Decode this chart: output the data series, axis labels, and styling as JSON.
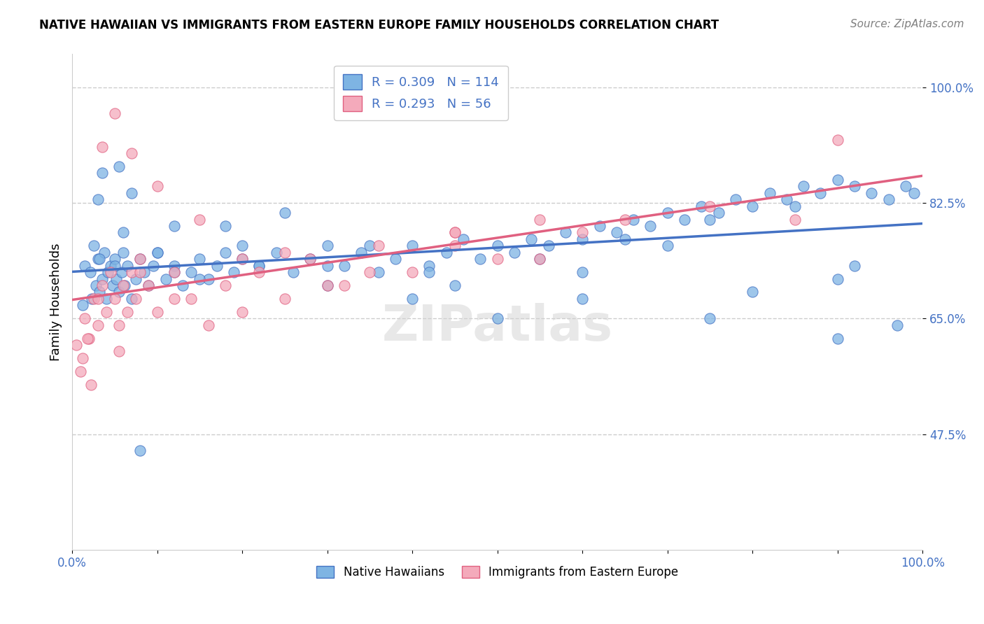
{
  "title": "NATIVE HAWAIIAN VS IMMIGRANTS FROM EASTERN EUROPE FAMILY HOUSEHOLDS CORRELATION CHART",
  "source": "Source: ZipAtlas.com",
  "xlabel": "",
  "ylabel": "Family Households",
  "xlim": [
    0.0,
    100.0
  ],
  "ylim": [
    30.0,
    105.0
  ],
  "ytick_labels": [
    "47.5%",
    "65.0%",
    "82.5%",
    "100.0%"
  ],
  "ytick_values": [
    47.5,
    65.0,
    82.5,
    100.0
  ],
  "xtick_labels": [
    "0.0%",
    "",
    "",
    "",
    "",
    "",
    "",
    "",
    "",
    "",
    "100.0%"
  ],
  "xtick_values": [
    0,
    10,
    20,
    30,
    40,
    50,
    60,
    70,
    80,
    90,
    100
  ],
  "series1_name": "Native Hawaiians",
  "series1_color": "#7EB4E3",
  "series1_line_color": "#4472C4",
  "series1_R": 0.309,
  "series1_N": 114,
  "series2_name": "Immigrants from Eastern Europe",
  "series2_color": "#F4AABB",
  "series2_line_color": "#E06080",
  "series2_R": 0.293,
  "series2_N": 56,
  "background_color": "#FFFFFF",
  "grid_color": "#CCCCCC",
  "legend_text_color": "#4472C4",
  "watermark": "ZIPatlas",
  "blue_points_x": [
    1.2,
    1.5,
    2.1,
    2.3,
    2.5,
    2.8,
    3.0,
    3.2,
    3.5,
    3.8,
    4.0,
    4.2,
    4.5,
    4.8,
    5.0,
    5.2,
    5.5,
    5.8,
    6.0,
    6.2,
    6.5,
    7.0,
    7.5,
    8.0,
    8.5,
    9.0,
    9.5,
    10.0,
    11.0,
    12.0,
    13.0,
    14.0,
    15.0,
    16.0,
    17.0,
    18.0,
    19.0,
    20.0,
    22.0,
    24.0,
    26.0,
    28.0,
    30.0,
    32.0,
    34.0,
    36.0,
    38.0,
    40.0,
    42.0,
    44.0,
    46.0,
    48.0,
    50.0,
    52.0,
    54.0,
    56.0,
    58.0,
    60.0,
    62.0,
    64.0,
    66.0,
    68.0,
    70.0,
    72.0,
    74.0,
    76.0,
    78.0,
    80.0,
    82.0,
    84.0,
    86.0,
    88.0,
    90.0,
    92.0,
    94.0,
    96.0,
    98.0,
    99.0,
    3.0,
    5.5,
    8.0,
    12.0,
    18.0,
    25.0,
    35.0,
    42.0,
    55.0,
    65.0,
    75.0,
    85.0,
    92.0,
    97.0,
    3.5,
    6.0,
    10.0,
    15.0,
    22.0,
    30.0,
    40.0,
    50.0,
    60.0,
    70.0,
    80.0,
    90.0,
    3.2,
    5.0,
    7.0,
    12.0,
    20.0,
    30.0,
    45.0,
    60.0,
    75.0,
    90.0
  ],
  "blue_points_y": [
    67.0,
    73.0,
    72.0,
    68.0,
    76.0,
    70.0,
    74.0,
    69.0,
    71.0,
    75.0,
    68.0,
    72.0,
    73.0,
    70.0,
    74.0,
    71.0,
    69.0,
    72.0,
    75.0,
    70.0,
    73.0,
    68.0,
    71.0,
    74.0,
    72.0,
    70.0,
    73.0,
    75.0,
    71.0,
    73.0,
    70.0,
    72.0,
    74.0,
    71.0,
    73.0,
    75.0,
    72.0,
    74.0,
    73.0,
    75.0,
    72.0,
    74.0,
    76.0,
    73.0,
    75.0,
    72.0,
    74.0,
    76.0,
    73.0,
    75.0,
    77.0,
    74.0,
    76.0,
    75.0,
    77.0,
    76.0,
    78.0,
    77.0,
    79.0,
    78.0,
    80.0,
    79.0,
    81.0,
    80.0,
    82.0,
    81.0,
    83.0,
    82.0,
    84.0,
    83.0,
    85.0,
    84.0,
    86.0,
    85.0,
    84.0,
    83.0,
    85.0,
    84.0,
    83.0,
    88.0,
    45.0,
    72.0,
    79.0,
    81.0,
    76.0,
    72.0,
    74.0,
    77.0,
    80.0,
    82.0,
    73.0,
    64.0,
    87.0,
    78.0,
    75.0,
    71.0,
    73.0,
    70.0,
    68.0,
    65.0,
    72.0,
    76.0,
    69.0,
    71.0,
    74.0,
    73.0,
    84.0,
    79.0,
    76.0,
    73.0,
    70.0,
    68.0,
    65.0,
    62.0
  ],
  "pink_points_x": [
    0.5,
    1.0,
    1.5,
    2.0,
    2.5,
    3.0,
    3.5,
    4.0,
    4.5,
    5.0,
    5.5,
    6.0,
    6.5,
    7.0,
    7.5,
    8.0,
    9.0,
    10.0,
    12.0,
    14.0,
    16.0,
    18.0,
    20.0,
    22.0,
    25.0,
    28.0,
    32.0,
    36.0,
    40.0,
    45.0,
    50.0,
    55.0,
    1.2,
    2.2,
    3.5,
    5.0,
    7.0,
    10.0,
    15.0,
    25.0,
    35.0,
    45.0,
    55.0,
    65.0,
    1.8,
    3.0,
    5.5,
    8.0,
    12.0,
    20.0,
    30.0,
    45.0,
    60.0,
    75.0,
    85.0,
    90.0
  ],
  "pink_points_y": [
    61.0,
    57.0,
    65.0,
    62.0,
    68.0,
    64.0,
    70.0,
    66.0,
    72.0,
    68.0,
    64.0,
    70.0,
    66.0,
    72.0,
    68.0,
    74.0,
    70.0,
    66.0,
    72.0,
    68.0,
    64.0,
    70.0,
    66.0,
    72.0,
    68.0,
    74.0,
    70.0,
    76.0,
    72.0,
    78.0,
    74.0,
    80.0,
    59.0,
    55.0,
    91.0,
    96.0,
    90.0,
    85.0,
    80.0,
    75.0,
    72.0,
    78.0,
    74.0,
    80.0,
    62.0,
    68.0,
    60.0,
    72.0,
    68.0,
    74.0,
    70.0,
    76.0,
    78.0,
    82.0,
    80.0,
    92.0
  ]
}
